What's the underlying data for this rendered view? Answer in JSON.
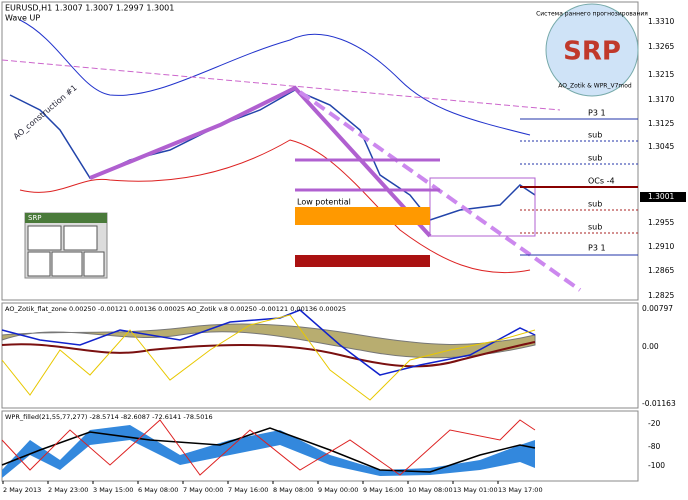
{
  "header": {
    "symbol_line": "EURUSD,H1  1.3007 1.3007 1.2997 1.3001",
    "indicator": "Wave UP"
  },
  "price_axis": [
    "1.3310",
    "1.3265",
    "1.3215",
    "1.3170",
    "1.3125",
    "1.3045",
    "1.2955",
    "1.2910",
    "1.2865",
    "1.2825"
  ],
  "current_price": "1.3001",
  "levels": [
    "P3 1",
    "sub",
    "sub",
    "OCs -4",
    "sub",
    "sub",
    "P3 1"
  ],
  "annotations": {
    "low_potential": "Low potential",
    "construction": "AO_construction #1"
  },
  "logo": {
    "title": "SRP",
    "subtitle": "Система раннего прогнозирования",
    "credit": "AO_Zotik & WPR_V7mod"
  },
  "panel": {
    "title": "SRP"
  },
  "ao_pane": {
    "label": "AO_Zotik_flat_zone 0.00250 -0.00121 0.00136 0.00025  AO_Zotik v.8 0.00250 -0.00121 0.00136 0.00025",
    "axis": [
      "0.00797",
      "0.00",
      "-0.01163"
    ]
  },
  "wpr_pane": {
    "label": "WPR_filled(21,55,77,277) -28.5714 -82.6087 -72.6141 -78.5016",
    "axis": [
      "-20",
      "-80",
      "-100"
    ]
  },
  "time_axis": [
    "2 May 2013",
    "2 May 23:00",
    "3 May 15:00",
    "6 May 08:00",
    "7 May 00:00",
    "7 May 16:00",
    "8 May 08:00",
    "9 May 00:00",
    "9 May 16:00",
    "10 May 08:00",
    "13 May 01:00",
    "13 May 17:00"
  ]
}
